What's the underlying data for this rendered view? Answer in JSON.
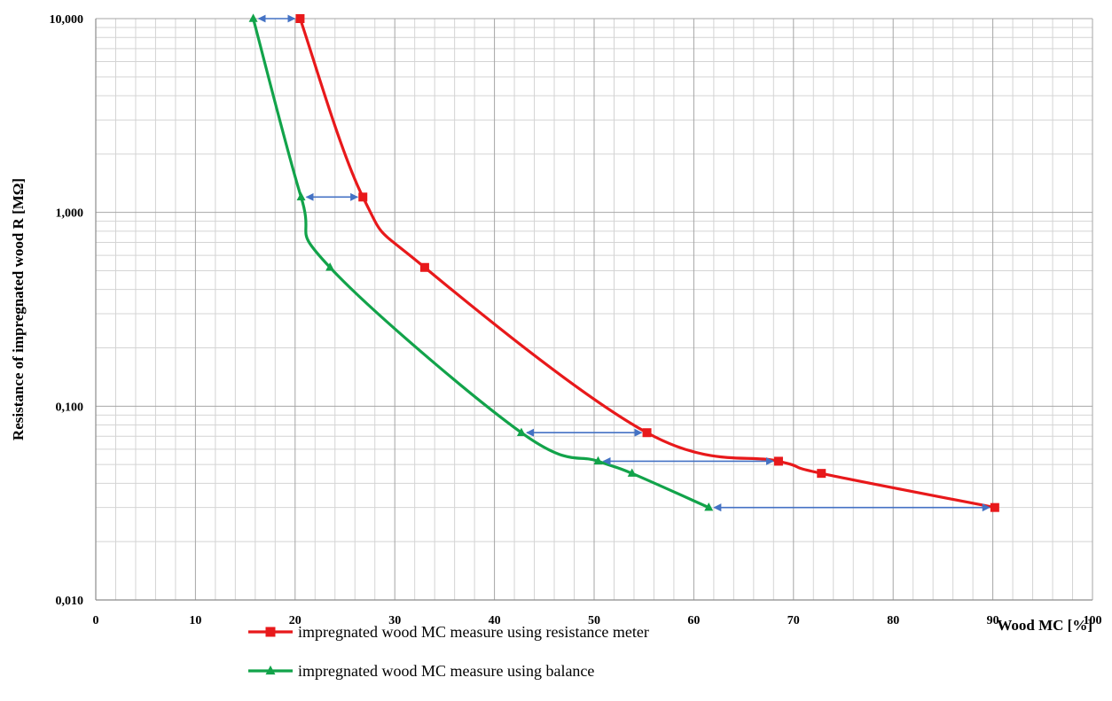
{
  "chart_data": {
    "type": "line",
    "title": "",
    "xlabel": "Wood MC [%]",
    "ylabel": "Resistance of impregnated wood R [MΩ]",
    "xlim": [
      0,
      100
    ],
    "ylim": [
      0.01,
      10
    ],
    "yscale": "log",
    "grid": true,
    "legend_position": "bottom",
    "x_ticks": [
      "0",
      "10",
      "20",
      "30",
      "40",
      "50",
      "60",
      "70",
      "80",
      "90",
      "100"
    ],
    "y_ticks": [
      "0,010",
      "0,100",
      "1,000",
      "10,000"
    ],
    "series": [
      {
        "name": "impregnated wood MC measure using resistance meter",
        "color": "#e8191b",
        "marker": "square",
        "x": [
          20.5,
          26.8,
          33.0,
          55.3,
          68.5,
          72.8,
          90.2
        ],
        "y": [
          10.0,
          1.2,
          0.52,
          0.073,
          0.052,
          0.045,
          0.03
        ]
      },
      {
        "name": "impregnated wood MC measure using balance",
        "color": "#12a34a",
        "marker": "triangle",
        "x": [
          15.8,
          20.6,
          23.5,
          42.7,
          50.4,
          53.8,
          61.5
        ],
        "y": [
          10.0,
          1.2,
          0.52,
          0.073,
          0.052,
          0.045,
          0.03
        ]
      }
    ],
    "annotations": [
      {
        "type": "double-arrow",
        "color": "#4472c4",
        "y": 10.0,
        "x_from": 15.8,
        "x_to": 20.5
      },
      {
        "type": "double-arrow",
        "color": "#4472c4",
        "y": 1.2,
        "x_from": 20.6,
        "x_to": 26.8
      },
      {
        "type": "double-arrow",
        "color": "#4472c4",
        "y": 0.073,
        "x_from": 42.7,
        "x_to": 55.3
      },
      {
        "type": "double-arrow",
        "color": "#4472c4",
        "y": 0.052,
        "x_from": 50.4,
        "x_to": 68.5
      },
      {
        "type": "double-arrow",
        "color": "#4472c4",
        "y": 0.03,
        "x_from": 61.5,
        "x_to": 90.2
      }
    ]
  }
}
